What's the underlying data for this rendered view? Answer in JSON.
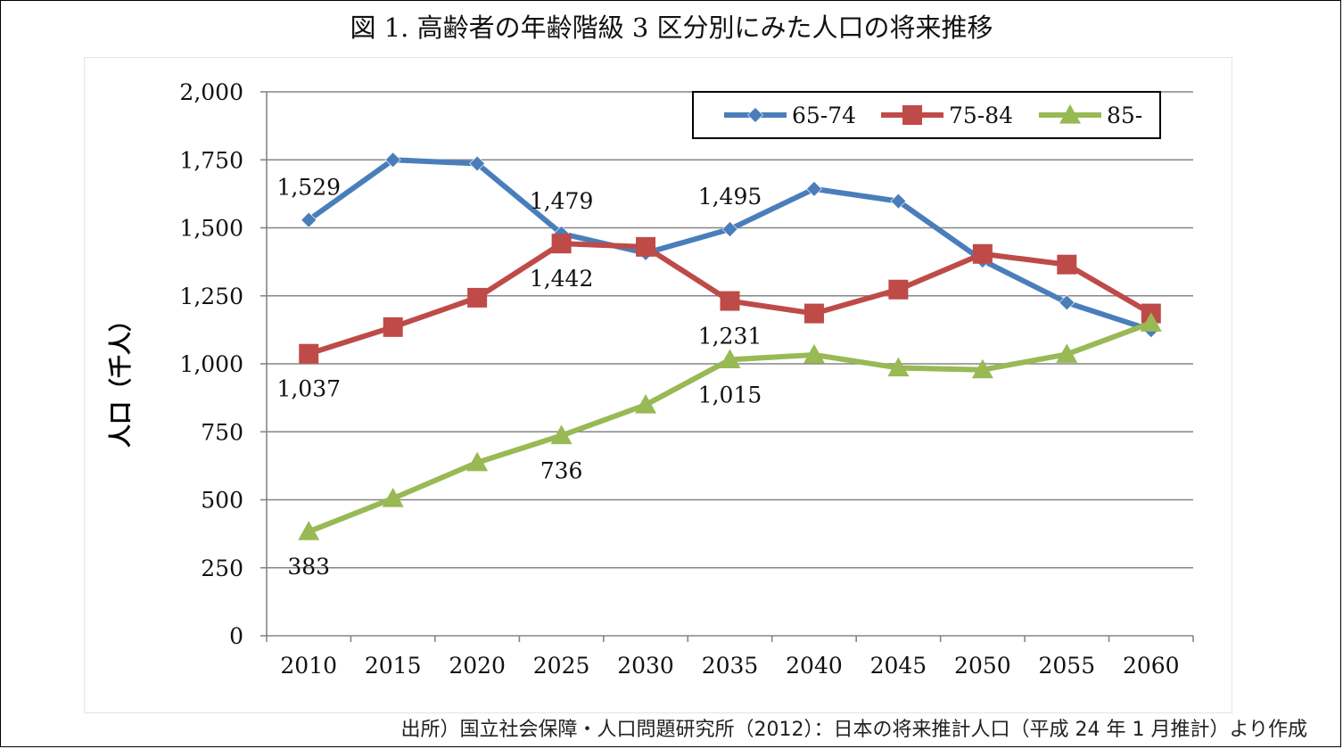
{
  "title": "図 1. 高齢者の年齢階級 3 区分別にみた人口の将来推移",
  "source": "出所）国立社会保障・人口問題研究所（2012）：日本の将来推計人口（平成 24 年 1 月推計）より作成",
  "chart_data": {
    "type": "line",
    "ylabel": "人口（千人）",
    "xlabel": "",
    "categories": [
      "2010",
      "2015",
      "2020",
      "2025",
      "2030",
      "2035",
      "2040",
      "2045",
      "2050",
      "2055",
      "2060"
    ],
    "ylim": [
      0,
      2000
    ],
    "yticks": [
      0,
      250,
      500,
      750,
      1000,
      1250,
      1500,
      1750,
      2000
    ],
    "ytick_labels": [
      "0",
      "250",
      "500",
      "750",
      "1,000",
      "1,250",
      "1,500",
      "1,750",
      "2,000"
    ],
    "grid": true,
    "legend_position": "top-right",
    "series": [
      {
        "name": "65-74",
        "color": "#4a7ebb",
        "marker": "diamond",
        "values": [
          1529,
          1750,
          1736,
          1479,
          1407,
          1495,
          1643,
          1598,
          1380,
          1225,
          1124
        ]
      },
      {
        "name": "75-84",
        "color": "#be4b48",
        "marker": "square",
        "values": [
          1037,
          1135,
          1243,
          1442,
          1430,
          1231,
          1185,
          1273,
          1404,
          1365,
          1185
        ]
      },
      {
        "name": "85-",
        "color": "#98b954",
        "marker": "triangle",
        "values": [
          383,
          505,
          637,
          736,
          849,
          1015,
          1033,
          985,
          978,
          1035,
          1150
        ]
      }
    ],
    "annotations": [
      {
        "series": 0,
        "index": 0,
        "text": "1,529",
        "place": "above"
      },
      {
        "series": 0,
        "index": 3,
        "text": "1,479",
        "place": "above"
      },
      {
        "series": 0,
        "index": 5,
        "text": "1,495",
        "place": "above"
      },
      {
        "series": 1,
        "index": 0,
        "text": "1,037",
        "place": "below"
      },
      {
        "series": 1,
        "index": 3,
        "text": "1,442",
        "place": "below"
      },
      {
        "series": 1,
        "index": 5,
        "text": "1,231",
        "place": "below"
      },
      {
        "series": 2,
        "index": 0,
        "text": "383",
        "place": "below"
      },
      {
        "series": 2,
        "index": 3,
        "text": "736",
        "place": "below"
      },
      {
        "series": 2,
        "index": 5,
        "text": "1,015",
        "place": "below"
      }
    ]
  }
}
